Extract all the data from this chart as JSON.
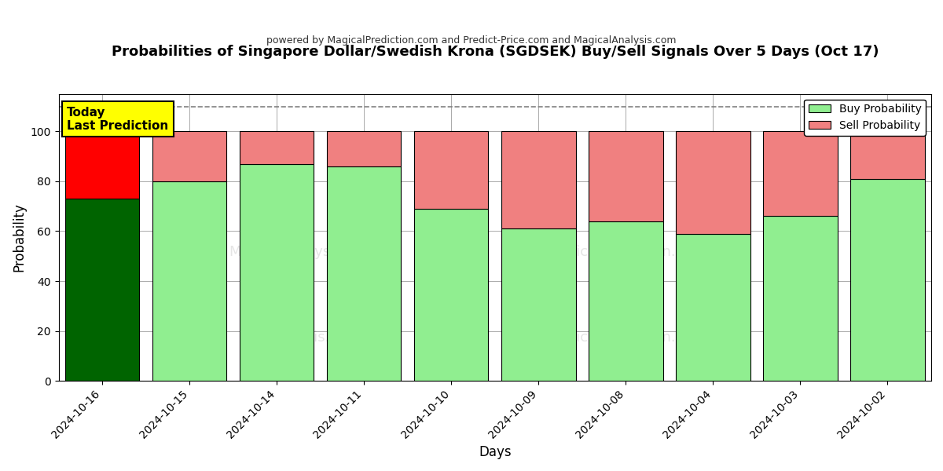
{
  "title": "Probabilities of Singapore Dollar/Swedish Krona (SGDSEK) Buy/Sell Signals Over 5 Days (Oct 17)",
  "subtitle": "powered by MagicalPrediction.com and Predict-Price.com and MagicalAnalysis.com",
  "xlabel": "Days",
  "ylabel": "Probability",
  "dates": [
    "2024-10-16",
    "2024-10-15",
    "2024-10-14",
    "2024-10-11",
    "2024-10-10",
    "2024-10-09",
    "2024-10-08",
    "2024-10-04",
    "2024-10-03",
    "2024-10-02"
  ],
  "buy_values": [
    73,
    80,
    87,
    86,
    69,
    61,
    64,
    59,
    66,
    81
  ],
  "sell_values": [
    27,
    20,
    13,
    14,
    31,
    39,
    36,
    41,
    34,
    19
  ],
  "today_bar_buy_color": "#006400",
  "today_bar_sell_color": "#FF0000",
  "other_bar_buy_color": "#90EE90",
  "other_bar_sell_color": "#F08080",
  "bar_edge_color": "#000000",
  "ylim": [
    0,
    115
  ],
  "yticks": [
    0,
    20,
    40,
    60,
    80,
    100
  ],
  "dashed_line_y": 110,
  "legend_buy_color": "#90EE90",
  "legend_sell_color": "#F08080",
  "today_box_color": "#FFFF00",
  "today_box_text": "Today\nLast Prediction",
  "background_color": "#FFFFFF",
  "grid_color": "#AAAAAA",
  "bar_width": 0.85
}
